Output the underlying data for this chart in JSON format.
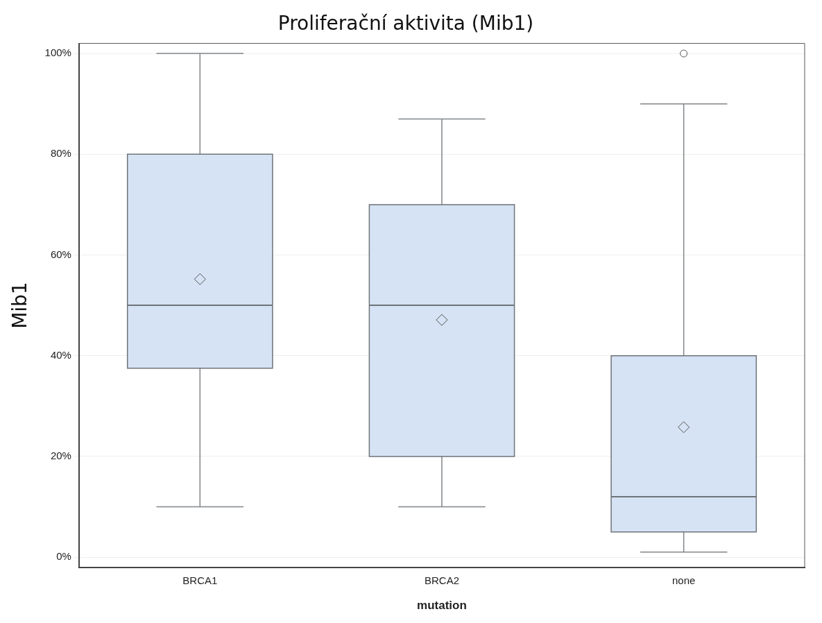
{
  "chart_data": {
    "type": "box",
    "title": "Proliferační aktivita (Mib1)",
    "xlabel": "mutation",
    "ylabel": "Mib1",
    "categories": [
      "BRCA1",
      "BRCA2",
      "none"
    ],
    "color": "#d5e3f4",
    "marker": "diamond",
    "boxes": [
      {
        "low": 10,
        "q1": 37.5,
        "median": 50,
        "q3": 80,
        "high": 100,
        "mean": 55.2
      },
      {
        "low": 10,
        "q1": 20,
        "median": 50,
        "q3": 70,
        "high": 87,
        "mean": 47.1
      },
      {
        "low": 1,
        "q1": 5,
        "median": 12,
        "q3": 40,
        "high": 90,
        "mean": 25.8,
        "outliers": [
          100
        ]
      }
    ],
    "ylim": [
      -2,
      102
    ],
    "yticks": [
      {
        "value": 0,
        "label": "0%"
      },
      {
        "value": 20,
        "label": "20%"
      },
      {
        "value": 40,
        "label": "40%"
      },
      {
        "value": 60,
        "label": "60%"
      },
      {
        "value": 80,
        "label": "80%"
      },
      {
        "value": 100,
        "label": "100%"
      }
    ],
    "grid": "y",
    "legend": false
  }
}
